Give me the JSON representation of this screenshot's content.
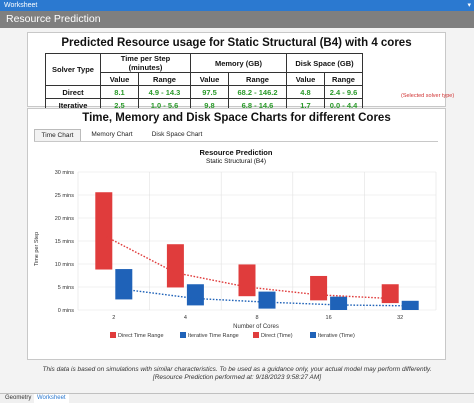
{
  "window": {
    "title": "Worksheet",
    "pin_glyph": "▾"
  },
  "header": {
    "title": "Resource Prediction"
  },
  "prediction": {
    "title": "Predicted Resource usage for Static Structural (B4) with 4 cores",
    "col_solver": "Solver Type",
    "col_time": "Time per Step (minutes)",
    "col_memory": "Memory (GB)",
    "col_disk": "Disk Space (GB)",
    "sub_value": "Value",
    "sub_range": "Range",
    "rows": [
      {
        "solver": "Direct",
        "time_value": "8.1",
        "time_range": "4.9 - 14.3",
        "mem_value": "97.5",
        "mem_range": "68.2 - 146.2",
        "disk_value": "4.8",
        "disk_range": "2.4 - 9.6"
      },
      {
        "solver": "Iterative",
        "time_value": "2.5",
        "time_range": "1.0 - 5.6",
        "mem_value": "9.8",
        "mem_range": "6.8 - 14.6",
        "disk_value": "1.7",
        "disk_range": "0.0 - 4.4"
      }
    ],
    "selected_note": "(Selected solver type)"
  },
  "charts_section": {
    "title": "Time, Memory and Disk Space Charts for different Cores",
    "tabs": [
      "Time Chart",
      "Memory Chart",
      "Disk Space Chart"
    ],
    "active_tab": 0
  },
  "chart_data": {
    "type": "bar",
    "title": "Resource Prediction",
    "subtitle": "Static Structural (B4)",
    "xlabel": "Number of Cores",
    "ylabel": "Time per Step",
    "categories": [
      "2",
      "4",
      "8",
      "16",
      "32"
    ],
    "yticks": [
      "0 mins",
      "5 mins",
      "10 mins",
      "15 mins",
      "20 mins",
      "25 mins",
      "30 mins"
    ],
    "ylim": [
      0,
      30
    ],
    "grid": true,
    "legend_position": "bottom",
    "series": [
      {
        "name": "Direct Time Range",
        "kind": "range",
        "color": "#e03c3c",
        "ranges": [
          [
            8.8,
            25.6
          ],
          [
            4.9,
            14.3
          ],
          [
            3.0,
            9.9
          ],
          [
            2.1,
            7.4
          ],
          [
            1.5,
            5.6
          ]
        ]
      },
      {
        "name": "Iterative Time Range",
        "kind": "range",
        "color": "#1f62b8",
        "ranges": [
          [
            2.3,
            8.9
          ],
          [
            1.0,
            5.6
          ],
          [
            0.3,
            4.0
          ],
          [
            0.0,
            2.9
          ],
          [
            0.0,
            2.0
          ]
        ]
      },
      {
        "name": "Direct (Time)",
        "kind": "line",
        "color": "#e03c3c",
        "values": [
          16.2,
          8.1,
          5.0,
          3.3,
          2.5
        ]
      },
      {
        "name": "Iterative (Time)",
        "kind": "line",
        "color": "#1f62b8",
        "values": [
          4.5,
          2.5,
          1.7,
          1.1,
          0.9
        ]
      }
    ]
  },
  "footnote": {
    "line1": "This data is based on simulations with similar characteristics. To be used as a guidance only, your actual model may perform differently.",
    "line2": "[Resource Prediction performed at: 9/18/2023 9:58:27 AM]"
  },
  "bottom_tabs": [
    "Geometry",
    "Worksheet"
  ]
}
